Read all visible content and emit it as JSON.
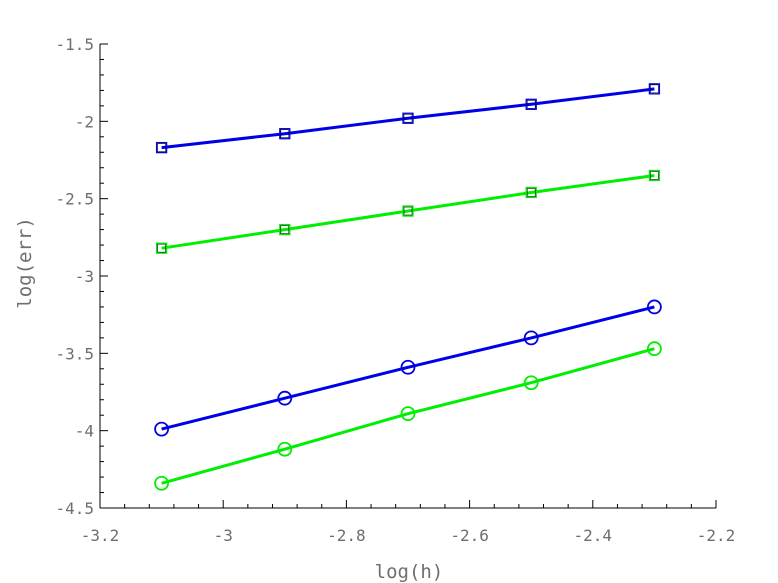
{
  "chart_data": {
    "type": "line",
    "title": "",
    "xlabel": "log(h)",
    "ylabel": "log(err)",
    "xlim": [
      -3.2,
      -2.2
    ],
    "ylim": [
      -4.5,
      -1.5
    ],
    "x_ticks": [
      -3.2,
      -3.0,
      -2.8,
      -2.6,
      -2.4,
      -2.2
    ],
    "x_tick_labels": [
      "-3.2",
      "-3",
      "-2.8",
      "-2.6",
      "-2.4",
      "-2.2"
    ],
    "y_ticks": [
      -1.5,
      -2.0,
      -2.5,
      -3.0,
      -3.5,
      -4.0,
      -4.5
    ],
    "y_tick_labels": [
      "-1.5",
      "-2",
      "-2.5",
      "-3",
      "-3.5",
      "-4",
      "-4.5"
    ],
    "grid": false,
    "series": [
      {
        "color": "#0000e6",
        "marker": "square",
        "x": [
          -3.1,
          -2.9,
          -2.7,
          -2.5,
          -2.3
        ],
        "y": [
          -2.17,
          -2.08,
          -1.98,
          -1.89,
          -1.79
        ]
      },
      {
        "color": "#00ee00",
        "marker": "square",
        "x": [
          -3.1,
          -2.9,
          -2.7,
          -2.5,
          -2.3
        ],
        "y": [
          -2.82,
          -2.7,
          -2.58,
          -2.46,
          -2.35
        ]
      },
      {
        "color": "#0000e6",
        "marker": "circle",
        "x": [
          -3.1,
          -2.9,
          -2.7,
          -2.5,
          -2.3
        ],
        "y": [
          -3.99,
          -3.79,
          -3.59,
          -3.4,
          -3.2
        ]
      },
      {
        "color": "#00ee00",
        "marker": "circle",
        "x": [
          -3.1,
          -2.9,
          -2.7,
          -2.5,
          -2.3
        ],
        "y": [
          -4.34,
          -4.12,
          -3.89,
          -3.69,
          -3.47
        ]
      }
    ]
  }
}
